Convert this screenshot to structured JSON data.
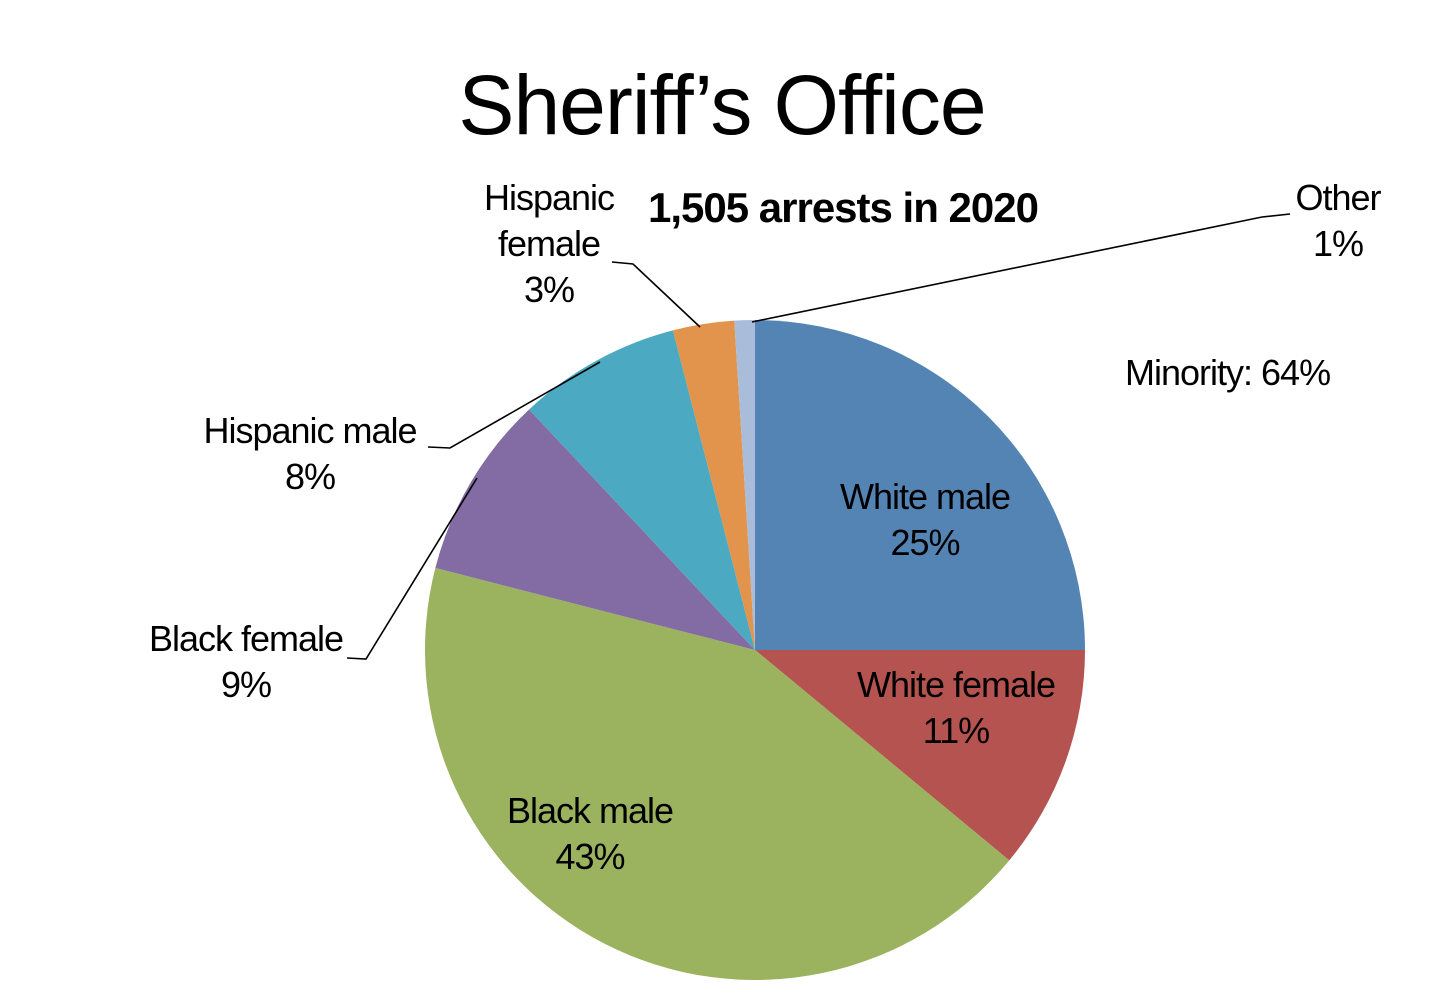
{
  "chart_data": {
    "type": "pie",
    "title": "Sheriff’s Office",
    "subtitle": "1,505 arrests in 2020",
    "annotation": "Minority: 64%",
    "start_angle_deg": 0,
    "direction": "clockwise",
    "legend": "none",
    "grid": "off",
    "total_percent": 100,
    "slices": [
      {
        "label": "White male",
        "percent": 25,
        "display": "25%",
        "color": "#5484B4",
        "label_position": "inside"
      },
      {
        "label": "White female",
        "percent": 11,
        "display": "11%",
        "color": "#B55350",
        "label_position": "inside"
      },
      {
        "label": "Black male",
        "percent": 43,
        "display": "43%",
        "color": "#9BB25F",
        "label_position": "inside"
      },
      {
        "label": "Black female",
        "percent": 9,
        "display": "9%",
        "color": "#836BA4",
        "label_position": "outside-left"
      },
      {
        "label": "Hispanic male",
        "percent": 8,
        "display": "8%",
        "color": "#4BA9C1",
        "label_position": "outside-left"
      },
      {
        "label": "Hispanic female",
        "percent": 3,
        "display": "3%",
        "color": "#E2944C",
        "label_position": "outside-top",
        "label_lines": [
          "Hispanic",
          "female"
        ]
      },
      {
        "label": "Other",
        "percent": 1,
        "display": "1%",
        "color": "#A9BDDB",
        "label_position": "outside-right"
      }
    ],
    "leader_line_color": "#000000",
    "text_color": "#000000",
    "background_color": "#ffffff"
  }
}
